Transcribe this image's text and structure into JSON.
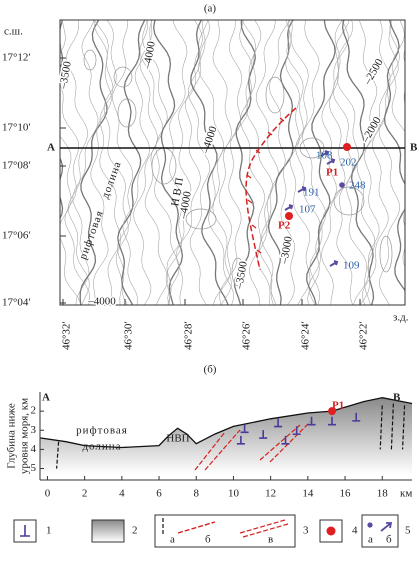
{
  "panel_a": {
    "label": "(а)",
    "lat_title": "с.ш.",
    "lon_title": "з.д.",
    "lat_ticks": [
      "17°12′",
      "17°10′",
      "17°08′",
      "17°06′",
      "17°04′"
    ],
    "lon_ticks": [
      "46°32′",
      "46°30′",
      "46°28′",
      "46°26′",
      "46°24′",
      "46°22′"
    ],
    "contour_labels": [
      "–3500",
      "–4000",
      "–4000",
      "–2500",
      "–2000",
      "–4000",
      "–3000",
      "–3500",
      "–4000"
    ],
    "section": [
      "A",
      "B"
    ],
    "features": [
      "рифтовая",
      "долина",
      "Н В П"
    ],
    "vents": [
      "P1",
      "P2"
    ],
    "stations": [
      "108",
      "202",
      "248",
      "191",
      "107",
      "109"
    ]
  },
  "panel_b": {
    "label": "(б)",
    "y_title": [
      "Глубина ниже",
      "уровня моря, км"
    ],
    "yticks": [
      2,
      3,
      4,
      5
    ],
    "ylim": [
      1,
      5.6
    ],
    "xticks": [
      0,
      2,
      4,
      6,
      8,
      10,
      12,
      14,
      16,
      18
    ],
    "xlim": [
      -0.4,
      19.6
    ],
    "x_unit": "км",
    "section": [
      "A",
      "B"
    ],
    "features": [
      "рифтовая",
      "долина",
      "НВП"
    ],
    "vent": "P1"
  },
  "legend": [
    {
      "number": "1"
    },
    {
      "number": "2"
    },
    {
      "number": "3",
      "parts": [
        "а",
        "б",
        "в"
      ]
    },
    {
      "number": "4"
    },
    {
      "number": "5",
      "parts": [
        "а",
        "б"
      ]
    }
  ]
}
